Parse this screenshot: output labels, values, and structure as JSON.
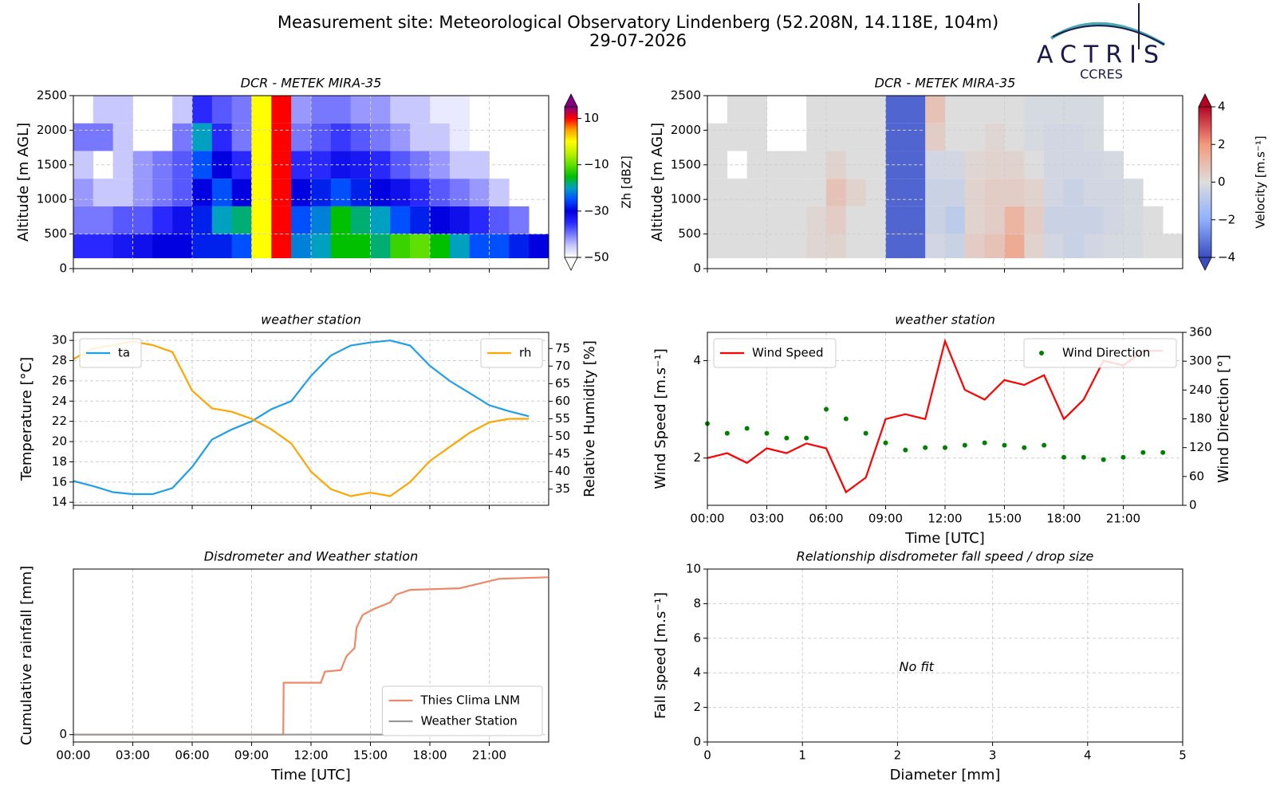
{
  "title": "Measurement site: Meteorological Observatory Lindenberg (52.208N, 14.118E, 104m)",
  "date": "29-07-2026",
  "logo": {
    "name": "ACTRIS",
    "subtitle": "CCRES"
  },
  "chart_data": [
    {
      "type": "heatmap",
      "title": "DCR - METEK MIRA-35",
      "ylabel": "Altitude [m AGL]",
      "xlim": [
        0,
        24
      ],
      "xticks": [
        0,
        3,
        6,
        9,
        12,
        15,
        18,
        21
      ],
      "xticklabels": false,
      "ylim": [
        0,
        2500
      ],
      "yticks": [
        0,
        500,
        1000,
        1500,
        2000,
        2500
      ],
      "grid": true,
      "x_edges": [
        0,
        1,
        2,
        3,
        4,
        5,
        6,
        7,
        8,
        9,
        10,
        11,
        12,
        13,
        14,
        15,
        16,
        17,
        18,
        19,
        20,
        21,
        22,
        23,
        24
      ],
      "y_edges": [
        150,
        500,
        900,
        1300,
        1700,
        2100,
        2500
      ],
      "z": [
        [
          -35,
          -35,
          -33,
          -32,
          -30,
          -30,
          -28,
          -28,
          -25,
          0,
          10,
          -22,
          -20,
          -15,
          -15,
          -18,
          -12,
          -10,
          -15,
          -20,
          -25,
          -25,
          -28,
          -30
        ],
        [
          -40,
          -40,
          -38,
          -38,
          -35,
          -32,
          -28,
          -20,
          -18,
          0,
          10,
          -25,
          -22,
          -15,
          -18,
          -20,
          -25,
          -28,
          -30,
          -32,
          -35,
          -38,
          -40,
          null
        ],
        [
          -42,
          -45,
          -45,
          -42,
          -40,
          -38,
          -30,
          -25,
          -30,
          0,
          10,
          -30,
          -28,
          -25,
          -28,
          -30,
          -32,
          -35,
          -38,
          -40,
          -42,
          -45,
          null,
          null
        ],
        [
          -45,
          null,
          -45,
          -42,
          -40,
          -38,
          -25,
          -30,
          -35,
          0,
          10,
          -35,
          -35,
          -32,
          -33,
          -35,
          -38,
          -40,
          -42,
          -45,
          -45,
          null,
          null,
          null
        ],
        [
          -40,
          -40,
          -45,
          null,
          null,
          -40,
          -20,
          -35,
          -40,
          0,
          10,
          -40,
          -38,
          -36,
          -38,
          -40,
          -42,
          -45,
          -45,
          -48,
          null,
          null,
          null,
          null
        ],
        [
          null,
          -45,
          -45,
          null,
          null,
          -45,
          -35,
          -38,
          -40,
          0,
          10,
          -42,
          -40,
          -40,
          -42,
          -42,
          -45,
          -45,
          -48,
          -48,
          null,
          null,
          null,
          null
        ]
      ],
      "colorbar": {
        "label": "Zh [dBZ]",
        "lim": [
          -50,
          15
        ],
        "ticks": [
          10,
          {
            "value": -10,
            "label": "−10"
          },
          {
            "value": -30,
            "label": "−30"
          },
          {
            "value": -50,
            "label": "−50"
          }
        ],
        "colormap": [
          "#ffffff",
          "#c8c8ff",
          "#7878ff",
          "#2828ff",
          "#0000e0",
          "#0050ff",
          "#00a0c0",
          "#00c000",
          "#60e000",
          "#c0f000",
          "#ffff00",
          "#ffa000",
          "#ff0000",
          "#800080"
        ]
      }
    },
    {
      "type": "heatmap",
      "title": "DCR - METEK MIRA-35",
      "ylabel": "Altitude [m AGL]",
      "xlim": [
        0,
        24
      ],
      "xticks": [
        0,
        3,
        6,
        9,
        12,
        15,
        18,
        21
      ],
      "xticklabels": false,
      "ylim": [
        0,
        2500
      ],
      "yticks": [
        0,
        500,
        1000,
        1500,
        2000,
        2500
      ],
      "grid": true,
      "x_edges": [
        0,
        1,
        2,
        3,
        4,
        5,
        6,
        7,
        8,
        9,
        10,
        11,
        12,
        13,
        14,
        15,
        16,
        17,
        18,
        19,
        20,
        21,
        22,
        23,
        24
      ],
      "y_edges": [
        150,
        500,
        900,
        1300,
        1700,
        2100,
        2500
      ],
      "z": [
        [
          0,
          0,
          0,
          0,
          0,
          0.2,
          0.3,
          0,
          0,
          -3.5,
          -3.5,
          -0.3,
          -0.5,
          0.5,
          0.8,
          1.5,
          0.3,
          -0.3,
          -0.5,
          -0.3,
          -0.2,
          -0.2,
          0,
          0
        ],
        [
          0,
          0,
          0,
          0,
          0,
          0.2,
          0.5,
          0,
          0,
          -3.5,
          -3.5,
          -0.5,
          -0.8,
          0.3,
          0.5,
          1.2,
          0.5,
          -0.5,
          -0.5,
          -0.5,
          -0.3,
          -0.2,
          0,
          null
        ],
        [
          0,
          0,
          0,
          0,
          0,
          0,
          0.8,
          0.3,
          0,
          -3.5,
          -3.5,
          -0.5,
          -0.5,
          0.3,
          0.5,
          0.5,
          0.3,
          -0.3,
          -0.5,
          -0.3,
          -0.3,
          -0.2,
          null,
          null
        ],
        [
          0,
          null,
          0,
          0,
          0,
          0,
          0.3,
          0,
          0,
          -3.5,
          -3.5,
          -0.3,
          -0.3,
          0.2,
          0.3,
          0.3,
          0,
          -0.3,
          -0.3,
          -0.3,
          -0.2,
          null,
          null,
          null
        ],
        [
          0,
          0,
          0,
          null,
          null,
          0,
          0,
          0,
          0,
          -3.5,
          -3.5,
          0.5,
          0,
          0,
          0.2,
          0,
          -0.2,
          -0.3,
          -0.3,
          -0.2,
          null,
          null,
          null,
          null
        ],
        [
          null,
          0,
          0,
          null,
          null,
          0,
          0,
          0,
          0,
          -3.5,
          -3.5,
          0.8,
          0,
          0,
          0,
          0,
          -0.2,
          -0.2,
          -0.2,
          -0.2,
          null,
          null,
          null,
          null
        ]
      ],
      "colorbar": {
        "label": "Velocity [m.s⁻¹]",
        "lim": [
          -4,
          4
        ],
        "ticks": [
          4,
          2,
          0,
          {
            "value": -2,
            "label": "−2"
          },
          {
            "value": -4,
            "label": "−4"
          }
        ],
        "colormap": [
          "#3b4cc0",
          "#8db0fe",
          "#dddddd",
          "#f49a7b",
          "#b40426"
        ]
      }
    },
    {
      "type": "line",
      "title": "weather station",
      "ylabel": "Temperature [°C]",
      "y2label": "Relative Humidity [%]",
      "xlim": [
        0,
        24
      ],
      "xticks": [
        0,
        3,
        6,
        9,
        12,
        15,
        18,
        21
      ],
      "xticklabels": false,
      "ylim": [
        13.7,
        30.8
      ],
      "yticks": [
        14,
        16,
        18,
        20,
        22,
        24,
        26,
        28,
        30
      ],
      "y2lim": [
        30.4,
        79.6
      ],
      "y2ticks": [
        35,
        40,
        45,
        50,
        55,
        60,
        65,
        70,
        75
      ],
      "grid": true,
      "x": [
        0,
        1,
        2,
        3,
        4,
        5,
        6,
        7,
        8,
        9,
        10,
        11,
        12,
        13,
        14,
        15,
        16,
        17,
        18,
        19,
        20,
        21,
        22,
        23
      ],
      "series": [
        {
          "name": "ta",
          "color": "#1f9fe8",
          "legend": "upper left",
          "values": [
            16.1,
            15.6,
            15.0,
            14.8,
            14.8,
            15.4,
            17.5,
            20.2,
            21.2,
            22.0,
            23.2,
            24.0,
            26.5,
            28.5,
            29.5,
            29.8,
            30.0,
            29.5,
            27.5,
            26.0,
            24.8,
            23.6,
            23.0,
            22.5
          ]
        },
        {
          "name": "rh",
          "color": "#ffa500",
          "legend": "upper right",
          "axis": "y2",
          "values": [
            72,
            75,
            76,
            77,
            76,
            74,
            63,
            58,
            57,
            55,
            52,
            48,
            40,
            35,
            33,
            34,
            33,
            37,
            43,
            47,
            51,
            54,
            55,
            55
          ]
        }
      ]
    },
    {
      "type": "line",
      "title": "weather station",
      "xlabel": "Time [UTC]",
      "ylabel": "Wind Speed [m.s⁻¹]",
      "y2label": "Wind Direction [°]",
      "xlim": [
        0,
        24
      ],
      "xticks": [
        {
          "value": 0,
          "label": "00:00"
        },
        {
          "value": 3,
          "label": "03:00"
        },
        {
          "value": 6,
          "label": "06:00"
        },
        {
          "value": 9,
          "label": "09:00"
        },
        {
          "value": 12,
          "label": "12:00"
        },
        {
          "value": 15,
          "label": "15:00"
        },
        {
          "value": 18,
          "label": "18:00"
        },
        {
          "value": 21,
          "label": "21:00"
        }
      ],
      "ylim": [
        1.03,
        4.58
      ],
      "yticks": [
        2,
        4
      ],
      "y2lim": [
        0,
        360
      ],
      "y2ticks": [
        0,
        60,
        120,
        180,
        240,
        300,
        360
      ],
      "grid": true,
      "x": [
        0,
        1,
        2,
        3,
        4,
        5,
        6,
        7,
        8,
        9,
        10,
        11,
        12,
        13,
        14,
        15,
        16,
        17,
        18,
        19,
        20,
        21,
        22,
        23
      ],
      "series": [
        {
          "name": "Wind Speed",
          "color": "#ff0000",
          "legend": "upper left",
          "values": [
            2.0,
            2.1,
            1.9,
            2.2,
            2.1,
            2.3,
            2.2,
            1.3,
            1.6,
            2.8,
            2.9,
            2.8,
            4.4,
            3.4,
            3.2,
            3.6,
            3.5,
            3.7,
            2.8,
            3.2,
            4.0,
            3.9,
            4.2,
            4.2
          ]
        },
        {
          "name": "Wind Direction",
          "color": "#008000",
          "legend": "upper right",
          "axis": "y2",
          "style": "markers",
          "values": [
            170,
            150,
            160,
            150,
            140,
            140,
            200,
            180,
            150,
            130,
            115,
            120,
            120,
            125,
            130,
            125,
            120,
            125,
            100,
            100,
            95,
            100,
            110,
            110
          ]
        }
      ]
    },
    {
      "type": "line",
      "title": "Disdrometer and Weather station",
      "xlabel": "Time [UTC]",
      "ylabel": "Cumulative rainfall [mm]",
      "xlim": [
        0,
        24
      ],
      "xticks": [
        {
          "value": 0,
          "label": "00:00"
        },
        {
          "value": 3,
          "label": "03:00"
        },
        {
          "value": 6,
          "label": "06:00"
        },
        {
          "value": 9,
          "label": "09:00"
        },
        {
          "value": 12,
          "label": "12:00"
        },
        {
          "value": 15,
          "label": "15:00"
        },
        {
          "value": 18,
          "label": "18:00"
        },
        {
          "value": 21,
          "label": "21:00"
        }
      ],
      "ylim": [
        -0.47,
        10.52
      ],
      "yticks": [
        0
      ],
      "grid": true,
      "series": [
        {
          "name": "Thies Clima LNM",
          "color": "#ee8866",
          "legend": "lower right",
          "x": [
            0,
            10.6,
            10.62,
            12.5,
            12.7,
            13.5,
            13.8,
            14.2,
            14.3,
            14.6,
            15.2,
            16.0,
            16.3,
            17.0,
            19.5,
            20.5,
            21.5,
            23.95
          ],
          "values": [
            0,
            0,
            3.3,
            3.3,
            4.0,
            4.1,
            5.0,
            5.5,
            6.8,
            7.6,
            8.0,
            8.4,
            8.9,
            9.2,
            9.3,
            9.6,
            9.9,
            10.0
          ]
        },
        {
          "name": "Weather Station",
          "color": "#999999",
          "legend": "lower right",
          "x": [
            0,
            15.7
          ],
          "values": [
            0,
            0
          ]
        }
      ]
    },
    {
      "type": "scatter",
      "title": "Relationship disdrometer fall speed / drop size",
      "xlabel": "Diameter [mm]",
      "ylabel": "Fall speed [m.s⁻¹]",
      "xlim": [
        0,
        5
      ],
      "xticks": [
        0,
        1,
        2,
        3,
        4,
        5
      ],
      "ylim": [
        0,
        10
      ],
      "yticks": [
        0,
        2,
        4,
        6,
        8,
        10
      ],
      "grid": true,
      "annotation": "No fit"
    }
  ]
}
